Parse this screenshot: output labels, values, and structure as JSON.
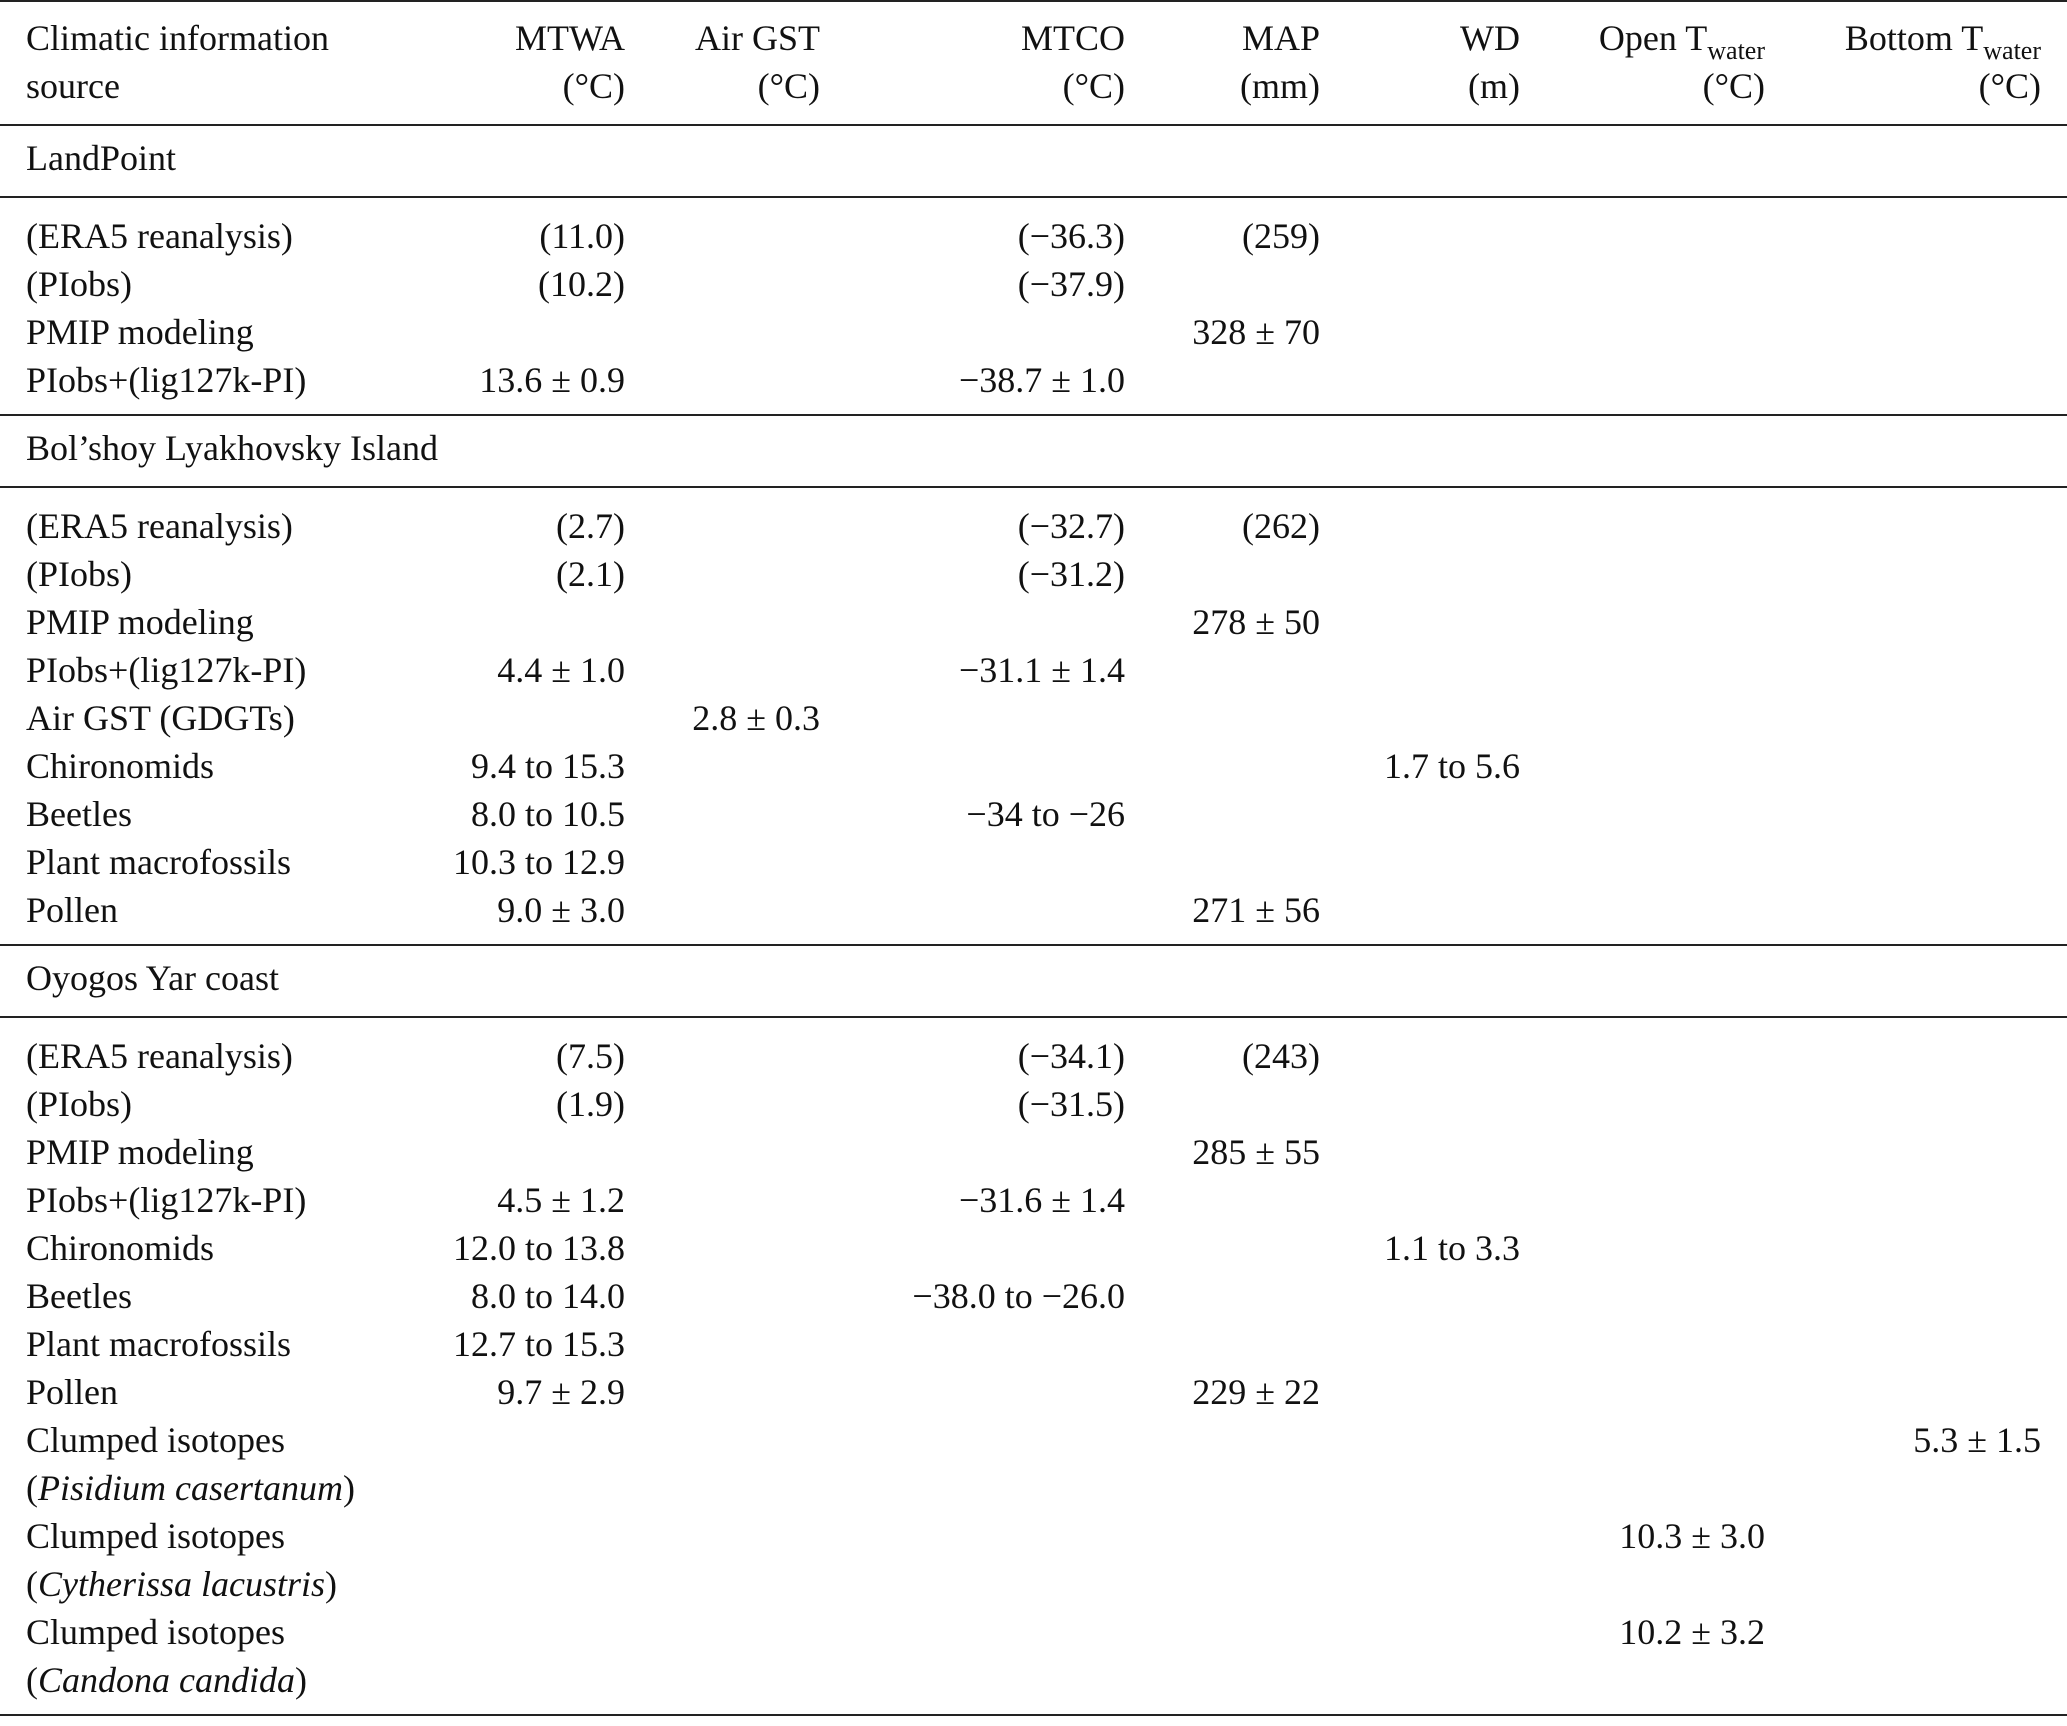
{
  "header": {
    "col0": [
      "Climatic information",
      "source"
    ],
    "mtwa": [
      "MTWA",
      "(°C)"
    ],
    "airgst": [
      "Air GST",
      "(°C)"
    ],
    "mtco": [
      "MTCO",
      "(°C)"
    ],
    "map": [
      "MAP",
      "(mm)"
    ],
    "wd": [
      "WD",
      "(m)"
    ],
    "open_twater": [
      "Open T",
      "water",
      "(°C)"
    ],
    "bottom_twater": [
      "Bottom T",
      "water",
      "(°C)"
    ]
  },
  "sections": [
    {
      "title": "LandPoint",
      "rows": [
        {
          "source": "(ERA5 reanalysis)",
          "mtwa": "(11.0)",
          "airgst": "",
          "mtco": "(−36.3)",
          "map": "(259)",
          "wd": "",
          "open": "",
          "bottom": ""
        },
        {
          "source": "(PIobs)",
          "mtwa": "(10.2)",
          "airgst": "",
          "mtco": "(−37.9)",
          "map": "",
          "wd": "",
          "open": "",
          "bottom": ""
        },
        {
          "source": "PMIP modeling",
          "mtwa": "",
          "airgst": "",
          "mtco": "",
          "map": "328 ± 70",
          "wd": "",
          "open": "",
          "bottom": ""
        },
        {
          "source": "PIobs+(lig127k-PI)",
          "mtwa": "13.6 ± 0.9",
          "airgst": "",
          "mtco": "−38.7 ± 1.0",
          "map": "",
          "wd": "",
          "open": "",
          "bottom": ""
        }
      ]
    },
    {
      "title": "Bol’shoy Lyakhovsky Island",
      "rows": [
        {
          "source": "(ERA5 reanalysis)",
          "mtwa": "(2.7)",
          "airgst": "",
          "mtco": "(−32.7)",
          "map": "(262)",
          "wd": "",
          "open": "",
          "bottom": ""
        },
        {
          "source": "(PIobs)",
          "mtwa": "(2.1)",
          "airgst": "",
          "mtco": "(−31.2)",
          "map": "",
          "wd": "",
          "open": "",
          "bottom": ""
        },
        {
          "source": "PMIP modeling",
          "mtwa": "",
          "airgst": "",
          "mtco": "",
          "map": "278 ± 50",
          "wd": "",
          "open": "",
          "bottom": ""
        },
        {
          "source": "PIobs+(lig127k-PI)",
          "mtwa": "4.4 ± 1.0",
          "airgst": "",
          "mtco": "−31.1 ± 1.4",
          "map": "",
          "wd": "",
          "open": "",
          "bottom": ""
        },
        {
          "source": "Air GST (GDGTs)",
          "mtwa": "",
          "airgst": "2.8 ± 0.3",
          "mtco": "",
          "map": "",
          "wd": "",
          "open": "",
          "bottom": ""
        },
        {
          "source": "Chironomids",
          "mtwa": "9.4 to 15.3",
          "airgst": "",
          "mtco": "",
          "map": "",
          "wd": "1.7 to 5.6",
          "open": "",
          "bottom": ""
        },
        {
          "source": "Beetles",
          "mtwa": "8.0 to 10.5",
          "airgst": "",
          "mtco": "−34 to −26",
          "map": "",
          "wd": "",
          "open": "",
          "bottom": ""
        },
        {
          "source": "Plant macrofossils",
          "mtwa": "10.3 to 12.9",
          "airgst": "",
          "mtco": "",
          "map": "",
          "wd": "",
          "open": "",
          "bottom": ""
        },
        {
          "source": "Pollen",
          "mtwa": "9.0 ± 3.0",
          "airgst": "",
          "mtco": "",
          "map": "271 ± 56",
          "wd": "",
          "open": "",
          "bottom": ""
        }
      ]
    },
    {
      "title": "Oyogos Yar coast",
      "rows": [
        {
          "source": "(ERA5 reanalysis)",
          "mtwa": "(7.5)",
          "airgst": "",
          "mtco": "(−34.1)",
          "map": "(243)",
          "wd": "",
          "open": "",
          "bottom": ""
        },
        {
          "source": "(PIobs)",
          "mtwa": "(1.9)",
          "airgst": "",
          "mtco": "(−31.5)",
          "map": "",
          "wd": "",
          "open": "",
          "bottom": ""
        },
        {
          "source": "PMIP modeling",
          "mtwa": "",
          "airgst": "",
          "mtco": "",
          "map": "285 ± 55",
          "wd": "",
          "open": "",
          "bottom": ""
        },
        {
          "source": "PIobs+(lig127k-PI)",
          "mtwa": "4.5 ± 1.2",
          "airgst": "",
          "mtco": "−31.6 ± 1.4",
          "map": "",
          "wd": "",
          "open": "",
          "bottom": ""
        },
        {
          "source": "Chironomids",
          "mtwa": "12.0 to 13.8",
          "airgst": "",
          "mtco": "",
          "map": "",
          "wd": "1.1 to 3.3",
          "open": "",
          "bottom": ""
        },
        {
          "source": "Beetles",
          "mtwa": "8.0 to 14.0",
          "airgst": "",
          "mtco": "−38.0 to −26.0",
          "map": "",
          "wd": "",
          "open": "",
          "bottom": ""
        },
        {
          "source": "Plant macrofossils",
          "mtwa": "12.7 to 15.3",
          "airgst": "",
          "mtco": "",
          "map": "",
          "wd": "",
          "open": "",
          "bottom": ""
        },
        {
          "source": "Pollen",
          "mtwa": "9.7 ± 2.9",
          "airgst": "",
          "mtco": "",
          "map": "229 ± 22",
          "wd": "",
          "open": "",
          "bottom": ""
        }
      ],
      "isotope_rows": [
        {
          "line1": "Clumped isotopes",
          "species": "Pisidium casertanum",
          "open": "",
          "bottom": "5.3 ± 1.5"
        },
        {
          "line1": "Clumped isotopes",
          "species": "Cytherissa lacustris",
          "open": "10.3 ± 3.0",
          "bottom": ""
        },
        {
          "line1": "Clumped isotopes",
          "species": "Candona candida",
          "open": "10.2 ± 3.2",
          "bottom": ""
        }
      ]
    }
  ]
}
